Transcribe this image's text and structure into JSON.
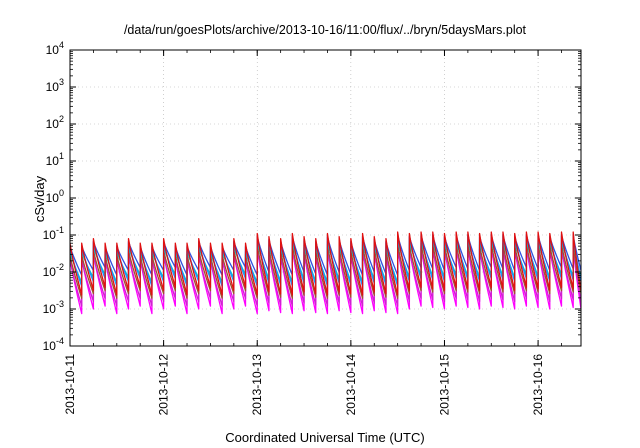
{
  "chart_data": {
    "type": "line",
    "title": "/data/run/goesPlots/archive/2013-10-16/11:00/flux/../bryn/5daysMars.plot",
    "xlabel": "Coordinated Universal Time (UTC)",
    "ylabel": "cSv/day",
    "x_ticks": [
      "2013-10-11",
      "2013-10-12",
      "2013-10-13",
      "2013-10-14",
      "2013-10-15",
      "2013-10-16"
    ],
    "y_ticks": [
      {
        "base": "10",
        "exp": "-4"
      },
      {
        "base": "10",
        "exp": "-3"
      },
      {
        "base": "10",
        "exp": "-2"
      },
      {
        "base": "10",
        "exp": "-1"
      },
      {
        "base": "10",
        "exp": "0"
      },
      {
        "base": "10",
        "exp": "1"
      },
      {
        "base": "10",
        "exp": "2"
      },
      {
        "base": "10",
        "exp": "3"
      },
      {
        "base": "10",
        "exp": "4"
      }
    ],
    "ylim": [
      0.0001,
      10000
    ],
    "y_scale": "log",
    "xlim": [
      "2013-10-11T00:00",
      "2013-10-16T11:00"
    ],
    "grid": true,
    "pattern": {
      "period_hours": 3,
      "segments": [
        {
          "start": "2013-10-11T00:00",
          "peak": [
            0.06,
            0.06,
            0.08
          ],
          "trough": [
            0.00075,
            0.001,
            0.0012
          ]
        },
        {
          "start": "2013-10-13T00:00",
          "peak": [
            0.08,
            0.11,
            0.09
          ],
          "trough": [
            0.00075,
            0.0009,
            0.0008
          ]
        },
        {
          "start": "2013-10-14T12:00",
          "peak": [
            0.12,
            0.12,
            0.11
          ],
          "trough": [
            0.0011,
            0.001,
            0.0012
          ]
        }
      ]
    },
    "series": [
      {
        "color": "#ff00ff",
        "peak_factor": 0.42,
        "trough_factor": 1.0
      },
      {
        "color": "#d21fd2",
        "peak_factor": 0.38,
        "trough_factor": 1.6
      },
      {
        "color": "#a0522d",
        "peak_factor": 0.5,
        "trough_factor": 2.6
      },
      {
        "color": "#00c8c8",
        "peak_factor": 0.6,
        "trough_factor": 7.0
      },
      {
        "color": "#1e90ff",
        "peak_factor": 0.78,
        "trough_factor": 5.5
      },
      {
        "color": "#3050e0",
        "peak_factor": 0.85,
        "trough_factor": 11.0
      },
      {
        "color": "#e01010",
        "peak_factor": 1.0,
        "trough_factor": 3.2
      }
    ]
  }
}
